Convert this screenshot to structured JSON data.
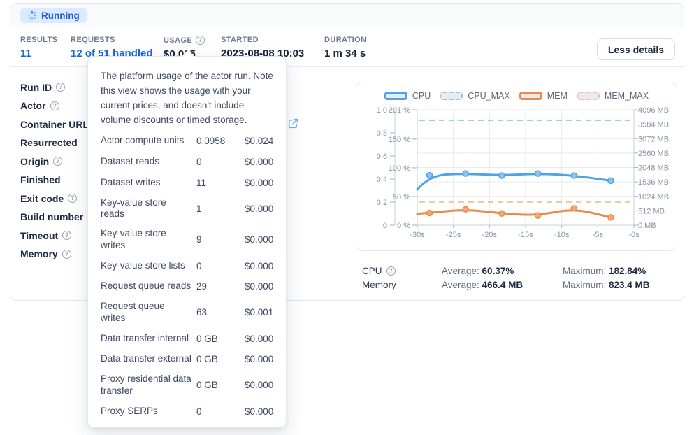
{
  "status": {
    "label": "Running"
  },
  "icons": {
    "help_glyph": "?"
  },
  "colors": {
    "accent_blue": "#1b66d9",
    "badge_bg": "#dbeafe",
    "badge_text": "#1e5fd0",
    "chart_cpu": "#4da3e8",
    "chart_cpu_max": "#8ec7f1",
    "chart_mem": "#ec8a44",
    "chart_mem_max": "#f5c29a"
  },
  "stats": {
    "results": {
      "label": "RESULTS",
      "value": "11"
    },
    "requests": {
      "label": "REQUESTS",
      "value": "12 of 51 handled"
    },
    "usage": {
      "label": "USAGE",
      "value": "$0.025"
    },
    "started": {
      "label": "STARTED",
      "value": "2023-08-08 10:03"
    },
    "duration": {
      "label": "DURATION",
      "value": "1 m 34 s"
    },
    "less_details_button": "Less details"
  },
  "details": {
    "rows": [
      {
        "label": "Run ID",
        "help": true
      },
      {
        "label": "Actor",
        "help": true
      },
      {
        "label": "Container URL",
        "help": true
      },
      {
        "label": "Resurrected",
        "help": false
      },
      {
        "label": "Origin",
        "help": true
      },
      {
        "label": "Finished",
        "help": false
      },
      {
        "label": "Exit code",
        "help": true
      },
      {
        "label": "Build number",
        "help": true
      },
      {
        "label": "Timeout",
        "help": true
      },
      {
        "label": "Memory",
        "help": true
      }
    ]
  },
  "usage_tooltip": {
    "description": "The platform usage of the actor run. Note this view shows the usage with your current prices, and doesn't include volume discounts or timed storage.",
    "rows": [
      {
        "name": "Actor compute units",
        "amount": "0.0958",
        "price": "$0.024"
      },
      {
        "name": "Dataset reads",
        "amount": "0",
        "price": "$0.000"
      },
      {
        "name": "Dataset writes",
        "amount": "11",
        "price": "$0.000"
      },
      {
        "name": "Key-value store reads",
        "amount": "1",
        "price": "$0.000"
      },
      {
        "name": "Key-value store writes",
        "amount": "9",
        "price": "$0.000"
      },
      {
        "name": "Key-value store lists",
        "amount": "0",
        "price": "$0.000"
      },
      {
        "name": "Request queue reads",
        "amount": "29",
        "price": "$0.000"
      },
      {
        "name": "Request queue writes",
        "amount": "63",
        "price": "$0.001"
      },
      {
        "name": "Data transfer internal",
        "amount": "0 GB",
        "price": "$0.000"
      },
      {
        "name": "Data transfer external",
        "amount": "0 GB",
        "price": "$0.000"
      },
      {
        "name": "Proxy residential data transfer",
        "amount": "0 GB",
        "price": "$0.000"
      },
      {
        "name": "Proxy SERPs",
        "amount": "0",
        "price": "$0.000"
      }
    ]
  },
  "chart_data": {
    "type": "line",
    "title": "",
    "xlabel": "",
    "x_ticks": [
      "-30s",
      "-25s",
      "-20s",
      "-15s",
      "-10s",
      "-5s",
      "-0s"
    ],
    "x_range": [
      -30,
      0
    ],
    "grid": true,
    "legend_position": "top",
    "axes": {
      "normalized": {
        "ticks": [
          "1,0",
          "0,8",
          "0,6",
          "0,4",
          "0,2",
          "0"
        ],
        "range": [
          0,
          1
        ]
      },
      "percent": {
        "ticks": [
          "201 %",
          "150 %",
          "100 %",
          "50 %",
          "0 %"
        ],
        "range": [
          0,
          201
        ]
      },
      "memory_mb": {
        "ticks": [
          "4096 MB",
          "3584 MB",
          "3072 MB",
          "2560 MB",
          "2048 MB",
          "1536 MB",
          "1024 MB",
          "512 MB",
          "0 MB"
        ],
        "range": [
          0,
          4096
        ]
      }
    },
    "series": [
      {
        "name": "CPU",
        "axis": "percent",
        "style": "solid",
        "color": "#4da3e8",
        "marker_fill": "#8cc2ee",
        "x": [
          -30,
          -28.3,
          -23.3,
          -18.3,
          -13.3,
          -8.3,
          -3.2
        ],
        "values": [
          62,
          87,
          90,
          86.5,
          90,
          86.5,
          77.5
        ],
        "markers_from_index": 1
      },
      {
        "name": "CPU_MAX",
        "axis": "percent",
        "style": "dashed",
        "color": "#8ec7f1",
        "constant": 182.84
      },
      {
        "name": "MEM",
        "axis": "memory_mb",
        "style": "solid",
        "color": "#ec8a44",
        "marker_fill": "#f2a878",
        "x": [
          -30,
          -28.3,
          -23.3,
          -18.3,
          -13.3,
          -8.3,
          -3.2
        ],
        "values": [
          405,
          435,
          565,
          415,
          345,
          595,
          275
        ],
        "markers_from_index": 1
      },
      {
        "name": "MEM_MAX",
        "axis": "memory_mb",
        "style": "dashed",
        "color": "#f5c29a",
        "constant": 823.4
      }
    ],
    "legend": [
      {
        "label": "CPU",
        "color": "#4da3e8",
        "dashed": false
      },
      {
        "label": "CPU_MAX",
        "color": "#8ec7f1",
        "dashed": true
      },
      {
        "label": "MEM",
        "color": "#ec8a44",
        "dashed": false
      },
      {
        "label": "MEM_MAX",
        "color": "#f5c29a",
        "dashed": true
      }
    ]
  },
  "summary": {
    "rows": [
      {
        "label": "CPU",
        "help": true,
        "avg_label": "Average:",
        "avg": "60.37%",
        "max_label": "Maximum:",
        "max": "182.84%"
      },
      {
        "label": "Memory",
        "help": false,
        "avg_label": "Average:",
        "avg": "466.4 MB",
        "max_label": "Maximum:",
        "max": "823.4 MB"
      }
    ]
  }
}
